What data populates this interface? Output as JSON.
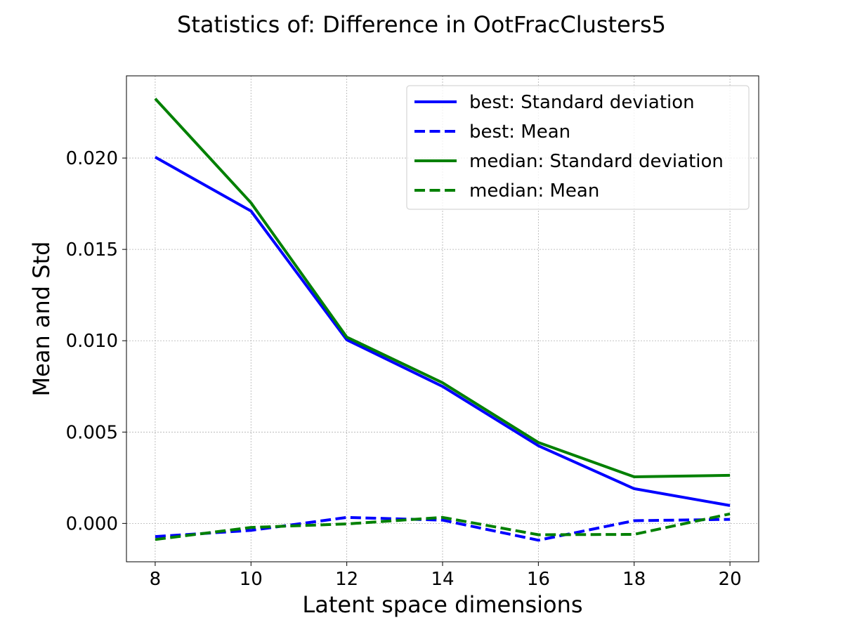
{
  "chart_data": {
    "type": "line",
    "title": "Statistics of: Difference in OotFracClusters5",
    "xlabel": "Latent space dimensions",
    "ylabel": "Mean and Std",
    "x": [
      8,
      10,
      12,
      14,
      16,
      18,
      20
    ],
    "xlim": [
      7.4,
      20.6
    ],
    "ylim": [
      -0.0021,
      0.0245
    ],
    "xticks": [
      "8",
      "10",
      "12",
      "14",
      "16",
      "18",
      "20"
    ],
    "yticks": [
      "0.000",
      "0.005",
      "0.010",
      "0.015",
      "0.020"
    ],
    "ytick_values": [
      0.0,
      0.005,
      0.01,
      0.015,
      0.02
    ],
    "grid": true,
    "legend_position": "top-right",
    "series": [
      {
        "name": "best: Standard deviation",
        "color": "#0000ff",
        "dash": "solid",
        "values": [
          0.02005,
          0.0171,
          0.01005,
          0.0075,
          0.00425,
          0.0019,
          0.00098
        ]
      },
      {
        "name": "best: Mean",
        "color": "#0000ff",
        "dash": "dashed",
        "values": [
          -0.00072,
          -0.00038,
          0.00033,
          0.00018,
          -0.00092,
          0.00015,
          0.00022
        ]
      },
      {
        "name": "median: Standard deviation",
        "color": "#008000",
        "dash": "solid",
        "values": [
          0.02325,
          0.01755,
          0.0102,
          0.0077,
          0.00443,
          0.00255,
          0.00263
        ]
      },
      {
        "name": "median: Mean",
        "color": "#008000",
        "dash": "dashed",
        "values": [
          -0.00088,
          -0.00022,
          -3e-05,
          0.00033,
          -0.00062,
          -0.0006,
          0.00052
        ]
      }
    ]
  }
}
